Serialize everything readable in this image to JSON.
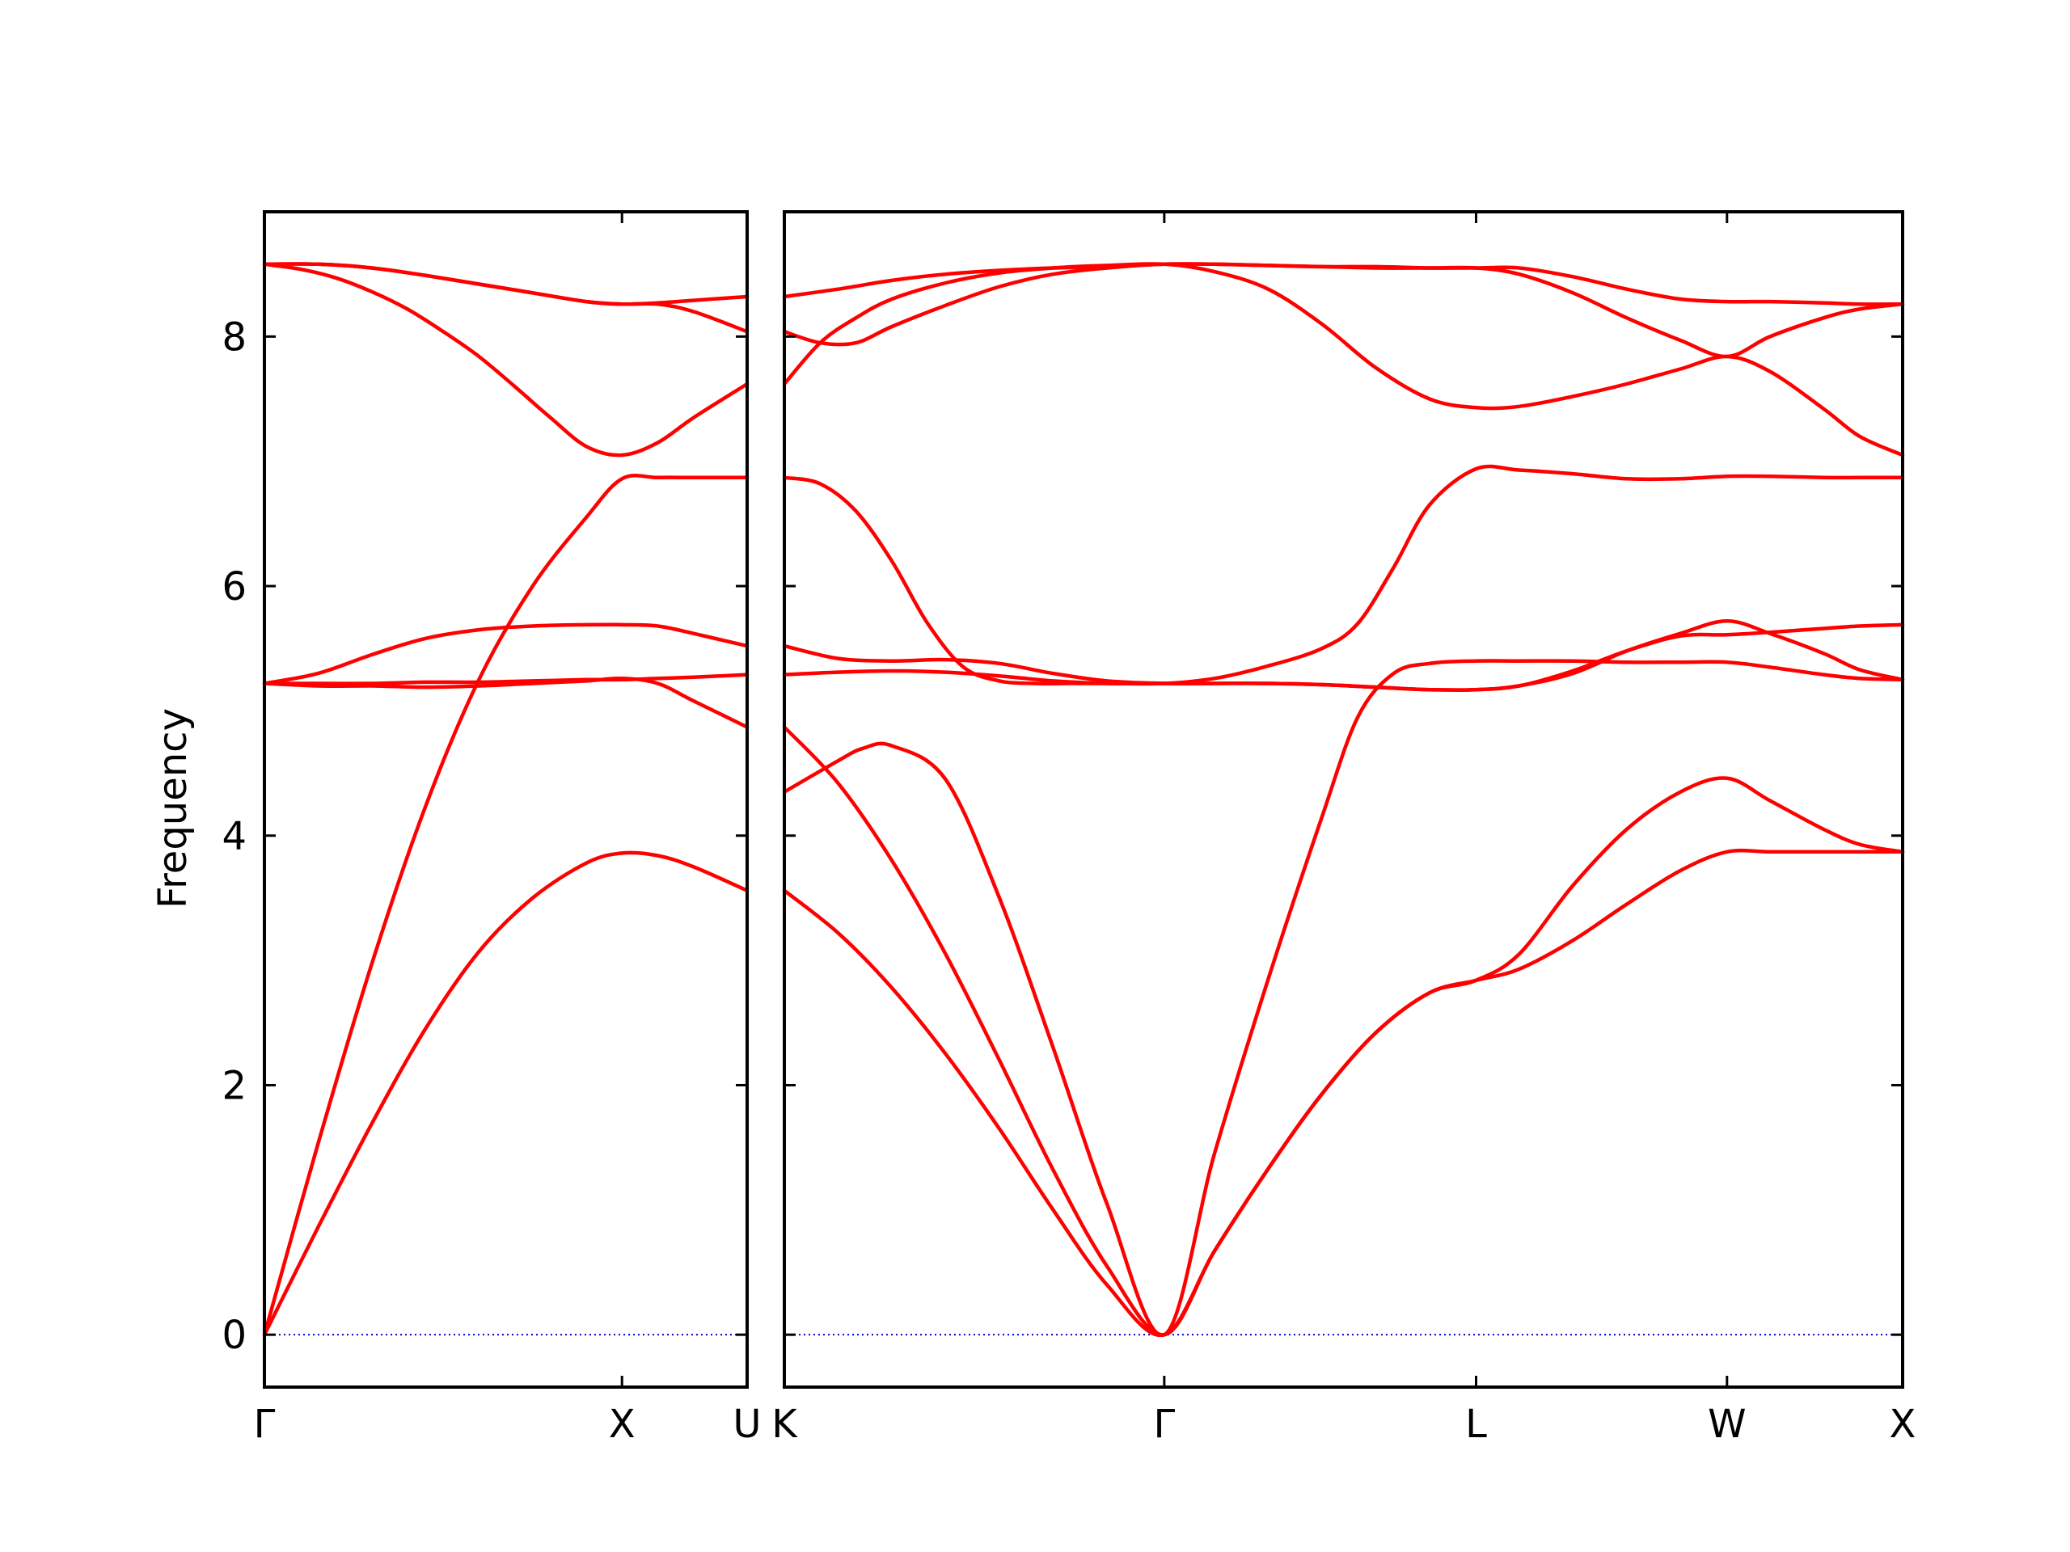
{
  "chart_data": {
    "type": "line",
    "ylabel": "Frequency",
    "ylim": [
      -0.42,
      9.0
    ],
    "yticks": [
      0,
      2,
      4,
      6,
      8
    ],
    "grid": false,
    "colors": {
      "bands": "#ff0000",
      "zero_line": "#0000cc",
      "frame": "#000000"
    },
    "segments": [
      {
        "path": "Γ-X-U",
        "xlim": [
          0,
          1.35
        ],
        "ticks": [
          {
            "x": 0,
            "label": "Γ"
          },
          {
            "x": 1.0,
            "label": "X"
          },
          {
            "x": 1.35,
            "label": "U"
          }
        ],
        "bands": [
          {
            "x": [
              0,
              0.15,
              0.3,
              0.45,
              0.6,
              0.75,
              0.9,
              1.0,
              1.1,
              1.2,
              1.35
            ],
            "y": [
              0,
              0.86,
              1.69,
              2.45,
              3.07,
              3.5,
              3.78,
              3.86,
              3.84,
              3.75,
              3.56
            ]
          },
          {
            "x": [
              0,
              0.15,
              0.3,
              0.45,
              0.6,
              0.75,
              0.9,
              1.0,
              1.1,
              1.2,
              1.35
            ],
            "y": [
              0,
              1.53,
              2.97,
              4.23,
              5.25,
              6.0,
              6.55,
              6.86,
              6.87,
              6.87,
              6.87
            ]
          },
          {
            "x": [
              0,
              0.15,
              0.3,
              0.45,
              0.6,
              0.75,
              0.9,
              1.0,
              1.1,
              1.2,
              1.35
            ],
            "y": [
              5.22,
              5.2,
              5.2,
              5.19,
              5.2,
              5.22,
              5.24,
              5.26,
              5.22,
              5.08,
              4.87
            ]
          },
          {
            "x": [
              0,
              0.15,
              0.3,
              0.45,
              0.6,
              0.75,
              0.9,
              1.0,
              1.1,
              1.2,
              1.35
            ],
            "y": [
              5.22,
              5.3,
              5.45,
              5.58,
              5.65,
              5.68,
              5.69,
              5.69,
              5.68,
              5.62,
              5.52
            ]
          },
          {
            "x": [
              0,
              0.15,
              0.3,
              0.45,
              0.6,
              0.75,
              0.9,
              1.0,
              1.1,
              1.2,
              1.35
            ],
            "y": [
              5.22,
              5.22,
              5.22,
              5.23,
              5.23,
              5.24,
              5.25,
              5.25,
              5.26,
              5.27,
              5.29
            ]
          },
          {
            "x": [
              0,
              0.1,
              0.2,
              0.3,
              0.4,
              0.5,
              0.6,
              0.7,
              0.8,
              0.9,
              1.0,
              1.1,
              1.2,
              1.35
            ],
            "y": [
              8.58,
              8.54,
              8.47,
              8.36,
              8.22,
              8.04,
              7.84,
              7.6,
              7.35,
              7.12,
              7.05,
              7.15,
              7.35,
              7.62
            ]
          },
          {
            "x": [
              0,
              0.15,
              0.3,
              0.45,
              0.6,
              0.75,
              0.9,
              1.0,
              1.1,
              1.2,
              1.35
            ],
            "y": [
              8.58,
              8.58,
              8.55,
              8.49,
              8.42,
              8.35,
              8.28,
              8.26,
              8.26,
              8.2,
              8.04
            ]
          },
          {
            "x": [
              0,
              0.15,
              0.3,
              0.45,
              0.6,
              0.75,
              0.9,
              1.0,
              1.1,
              1.2,
              1.35
            ],
            "y": [
              8.58,
              8.58,
              8.55,
              8.49,
              8.42,
              8.35,
              8.28,
              8.26,
              8.27,
              8.29,
              8.32
            ]
          }
        ]
      },
      {
        "path": "K-Γ-L-W-X",
        "xlim": [
          0,
          3.12
        ],
        "ticks": [
          {
            "x": 0,
            "label": "K"
          },
          {
            "x": 1.06,
            "label": "Γ"
          },
          {
            "x": 1.93,
            "label": "L"
          },
          {
            "x": 2.63,
            "label": "W"
          },
          {
            "x": 3.12,
            "label": "X"
          }
        ],
        "bands": [
          {
            "x": [
              0,
              0.15,
              0.3,
              0.45,
              0.6,
              0.75,
              0.9,
              1.06,
              1.2,
              1.35,
              1.5,
              1.65,
              1.8,
              1.93,
              2.05,
              2.2,
              2.35,
              2.5,
              2.63,
              2.75,
              2.9,
              3.0,
              3.12
            ],
            "y": [
              3.56,
              3.22,
              2.78,
              2.25,
              1.65,
              1.0,
              0.4,
              0,
              0.67,
              1.33,
              1.93,
              2.42,
              2.74,
              2.84,
              2.93,
              3.16,
              3.45,
              3.72,
              3.87,
              3.87,
              3.87,
              3.87,
              3.87
            ]
          },
          {
            "x": [
              0,
              0.15,
              0.3,
              0.45,
              0.6,
              0.75,
              0.9,
              1.06,
              1.2,
              1.35,
              1.5,
              1.65,
              1.8,
              1.93,
              2.05,
              2.2,
              2.35,
              2.5,
              2.63,
              2.75,
              2.9,
              3.0,
              3.12
            ],
            "y": [
              4.87,
              4.42,
              3.8,
              3.05,
              2.2,
              1.32,
              0.55,
              0,
              0.67,
              1.33,
              1.93,
              2.42,
              2.74,
              2.84,
              3.05,
              3.6,
              4.05,
              4.35,
              4.46,
              4.28,
              4.05,
              3.93,
              3.87
            ]
          },
          {
            "x": [
              0,
              0.15,
              0.22,
              0.3,
              0.45,
              0.6,
              0.75,
              0.9,
              1.06,
              1.2,
              1.35,
              1.5,
              1.6,
              1.7,
              1.8,
              1.93,
              2.05,
              2.2,
              2.35,
              2.5,
              2.63,
              2.75,
              2.9,
              3.0,
              3.12
            ],
            "y": [
              4.35,
              4.6,
              4.7,
              4.72,
              4.45,
              3.5,
              2.3,
              1.05,
              0,
              1.45,
              2.85,
              4.15,
              4.95,
              5.3,
              5.38,
              5.4,
              5.4,
              5.4,
              5.39,
              5.39,
              5.39,
              5.35,
              5.29,
              5.26,
              5.25
            ]
          },
          {
            "x": [
              0,
              0.15,
              0.3,
              0.45,
              0.6,
              0.75,
              0.9,
              1.06,
              1.2,
              1.35,
              1.5,
              1.65,
              1.8,
              1.93,
              2.05,
              2.2,
              2.35,
              2.5,
              2.63,
              2.75,
              2.9,
              3.0,
              3.12
            ],
            "y": [
              5.29,
              5.31,
              5.32,
              5.31,
              5.28,
              5.24,
              5.22,
              5.22,
              5.22,
              5.22,
              5.21,
              5.19,
              5.17,
              5.17,
              5.2,
              5.3,
              5.48,
              5.62,
              5.72,
              5.62,
              5.46,
              5.33,
              5.25
            ]
          },
          {
            "x": [
              0,
              0.15,
              0.3,
              0.45,
              0.6,
              0.75,
              0.9,
              1.06,
              1.2,
              1.35,
              1.5,
              1.65,
              1.8,
              1.93,
              2.05,
              2.2,
              2.35,
              2.5,
              2.63,
              2.75,
              2.9,
              3.0,
              3.12
            ],
            "y": [
              5.52,
              5.42,
              5.4,
              5.41,
              5.38,
              5.3,
              5.24,
              5.22,
              5.22,
              5.22,
              5.21,
              5.19,
              5.17,
              5.17,
              5.2,
              5.32,
              5.48,
              5.6,
              5.61,
              5.63,
              5.66,
              5.68,
              5.69
            ]
          },
          {
            "x": [
              0,
              0.1,
              0.2,
              0.3,
              0.4,
              0.5,
              0.6,
              0.7,
              0.8,
              0.9,
              1.06,
              1.2,
              1.35,
              1.5,
              1.6,
              1.7,
              1.8,
              1.93,
              2.05,
              2.2,
              2.35,
              2.5,
              2.63,
              2.75,
              2.9,
              3.0,
              3.12
            ],
            "y": [
              6.87,
              6.82,
              6.6,
              6.2,
              5.7,
              5.35,
              5.24,
              5.22,
              5.22,
              5.22,
              5.22,
              5.26,
              5.36,
              5.5,
              5.7,
              6.15,
              6.65,
              6.94,
              6.93,
              6.9,
              6.86,
              6.86,
              6.88,
              6.88,
              6.87,
              6.87,
              6.87
            ]
          },
          {
            "x": [
              0,
              0.1,
              0.2,
              0.3,
              0.45,
              0.6,
              0.75,
              0.9,
              1.06,
              1.2,
              1.35,
              1.5,
              1.65,
              1.8,
              1.93,
              2.05,
              2.2,
              2.35,
              2.5,
              2.63,
              2.75,
              2.9,
              3.0,
              3.12
            ],
            "y": [
              7.62,
              7.95,
              8.15,
              8.3,
              8.43,
              8.51,
              8.55,
              8.57,
              8.58,
              8.52,
              8.38,
              8.1,
              7.75,
              7.5,
              7.43,
              7.44,
              7.52,
              7.62,
              7.74,
              7.84,
              7.72,
              7.42,
              7.2,
              7.05
            ]
          },
          {
            "x": [
              0,
              0.1,
              0.2,
              0.3,
              0.45,
              0.6,
              0.75,
              0.9,
              1.06,
              1.2,
              1.35,
              1.5,
              1.65,
              1.8,
              1.93,
              2.05,
              2.2,
              2.35,
              2.5,
              2.63,
              2.75,
              2.9,
              3.0,
              3.12
            ],
            "y": [
              8.04,
              7.95,
              7.95,
              8.08,
              8.25,
              8.4,
              8.5,
              8.55,
              8.58,
              8.58,
              8.57,
              8.56,
              8.55,
              8.55,
              8.55,
              8.5,
              8.35,
              8.15,
              7.97,
              7.84,
              8.0,
              8.15,
              8.22,
              8.26
            ]
          },
          {
            "x": [
              0,
              0.15,
              0.3,
              0.45,
              0.6,
              0.75,
              0.9,
              1.06,
              1.2,
              1.35,
              1.5,
              1.65,
              1.8,
              1.93,
              2.05,
              2.2,
              2.35,
              2.5,
              2.63,
              2.75,
              2.9,
              3.0,
              3.12
            ],
            "y": [
              8.32,
              8.38,
              8.45,
              8.5,
              8.53,
              8.55,
              8.56,
              8.58,
              8.58,
              8.57,
              8.56,
              8.56,
              8.55,
              8.55,
              8.55,
              8.48,
              8.38,
              8.3,
              8.28,
              8.28,
              8.27,
              8.26,
              8.26
            ]
          }
        ]
      }
    ]
  }
}
